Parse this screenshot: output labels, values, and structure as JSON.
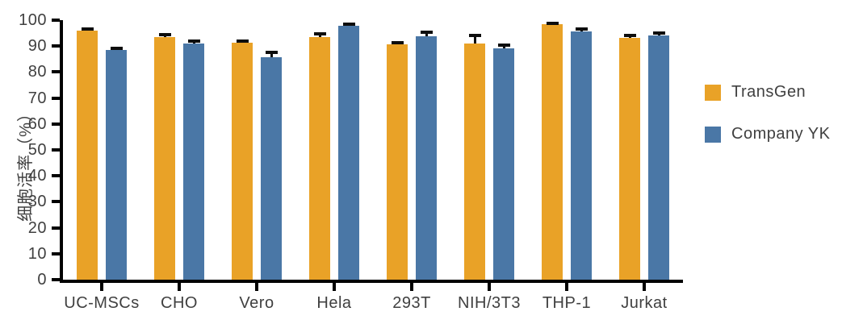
{
  "chart_data": {
    "type": "bar",
    "title": "",
    "xlabel": "",
    "ylabel": "细胞活率（%）",
    "categories": [
      "UC-MSCs",
      "CHO",
      "Vero",
      "Hela",
      "293T",
      "NIH/3T3",
      "THP-1",
      "Jurkat"
    ],
    "series": [
      {
        "name": "TransGen",
        "color": "#E9A227",
        "values": [
          96.0,
          93.5,
          91.2,
          93.4,
          90.6,
          91.0,
          98.4,
          93.3
        ],
        "errors": [
          0.7,
          1.0,
          0.8,
          1.2,
          0.8,
          3.2,
          0.5,
          0.8
        ]
      },
      {
        "name": "Company YK",
        "color": "#4A77A6",
        "values": [
          88.5,
          90.9,
          85.7,
          97.9,
          93.9,
          89.2,
          95.7,
          94.1
        ],
        "errors": [
          0.7,
          1.0,
          2.0,
          0.7,
          1.5,
          1.3,
          0.8,
          0.8
        ]
      }
    ],
    "ylim": [
      0,
      100
    ],
    "yticks": [
      0,
      10,
      20,
      30,
      40,
      50,
      60,
      70,
      80,
      90,
      100
    ],
    "grid": false,
    "legend_position": "right",
    "error_bars": "upper",
    "axis_color": "#000000",
    "text_color": "#404040"
  }
}
